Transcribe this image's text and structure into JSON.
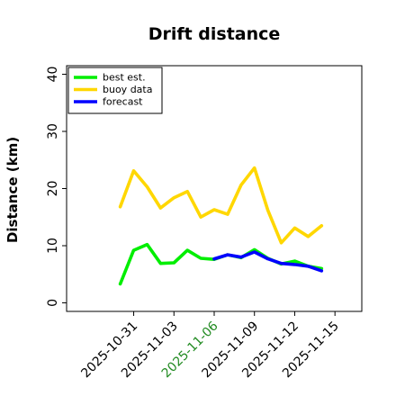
{
  "chart_data": {
    "type": "line",
    "title": "Drift distance",
    "xlabel": "",
    "ylabel": "Distance (km)",
    "ylim": [
      -1.5,
      41.5
    ],
    "xlim": [
      "2025-10-26",
      "2025-11-17"
    ],
    "yticks": [
      0,
      10,
      20,
      30,
      40
    ],
    "xticks": [
      {
        "date": "2025-10-31",
        "label": "2025-10-31",
        "color": "#000000"
      },
      {
        "date": "2025-11-03",
        "label": "2025-11-03",
        "color": "#000000"
      },
      {
        "date": "2025-11-06",
        "label": "2025-11-06",
        "color": "#228B22"
      },
      {
        "date": "2025-11-09",
        "label": "2025-11-09",
        "color": "#000000"
      },
      {
        "date": "2025-11-12",
        "label": "2025-11-12",
        "color": "#000000"
      },
      {
        "date": "2025-11-15",
        "label": "2025-11-15",
        "color": "#000000"
      }
    ],
    "grid": false,
    "legend": "top-left",
    "series": [
      {
        "name": "best est.",
        "color": "#00ee00",
        "points": [
          [
            "2025-10-30",
            3.3
          ],
          [
            "2025-10-31",
            9.2
          ],
          [
            "2025-11-01",
            10.2
          ],
          [
            "2025-11-02",
            6.9
          ],
          [
            "2025-11-03",
            7.0
          ],
          [
            "2025-11-04",
            9.2
          ],
          [
            "2025-11-05",
            7.8
          ],
          [
            "2025-11-06",
            7.6
          ],
          [
            "2025-11-07",
            8.4
          ],
          [
            "2025-11-08",
            7.9
          ],
          [
            "2025-11-09",
            9.3
          ],
          [
            "2025-11-10",
            7.8
          ],
          [
            "2025-11-11",
            6.8
          ],
          [
            "2025-11-12",
            7.3
          ],
          [
            "2025-11-13",
            6.4
          ],
          [
            "2025-11-14",
            6.0
          ]
        ]
      },
      {
        "name": "buoy data",
        "color": "#ffd700",
        "points": [
          [
            "2025-10-30",
            16.8
          ],
          [
            "2025-10-31",
            23.1
          ],
          [
            "2025-11-01",
            20.3
          ],
          [
            "2025-11-02",
            16.6
          ],
          [
            "2025-11-03",
            18.4
          ],
          [
            "2025-11-04",
            19.5
          ],
          [
            "2025-11-05",
            15.0
          ],
          [
            "2025-11-06",
            16.3
          ],
          [
            "2025-11-07",
            15.5
          ],
          [
            "2025-11-08",
            20.6
          ],
          [
            "2025-11-09",
            23.6
          ],
          [
            "2025-11-10",
            16.2
          ],
          [
            "2025-11-11",
            10.5
          ],
          [
            "2025-11-12",
            13.1
          ],
          [
            "2025-11-13",
            11.6
          ],
          [
            "2025-11-14",
            13.5
          ]
        ]
      },
      {
        "name": "forecast",
        "color": "#0000ff",
        "points": [
          [
            "2025-11-06",
            7.7
          ],
          [
            "2025-11-07",
            8.4
          ],
          [
            "2025-11-08",
            8.0
          ],
          [
            "2025-11-09",
            8.9
          ],
          [
            "2025-11-10",
            7.7
          ],
          [
            "2025-11-11",
            6.9
          ],
          [
            "2025-11-12",
            6.7
          ],
          [
            "2025-11-13",
            6.4
          ],
          [
            "2025-11-14",
            5.6
          ]
        ]
      }
    ]
  }
}
